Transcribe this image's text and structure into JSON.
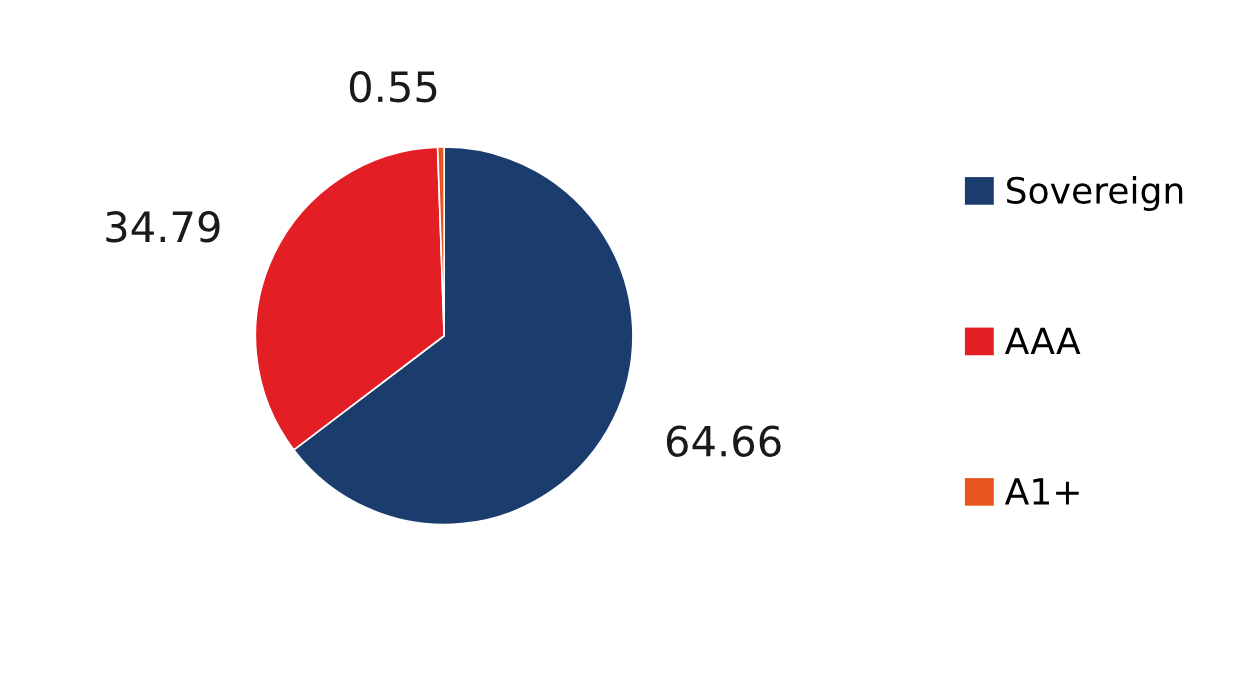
{
  "chart_data": {
    "type": "pie",
    "categories": [
      "Sovereign",
      "AAA",
      "A1+"
    ],
    "values": [
      64.66,
      34.79,
      0.55
    ],
    "colors": [
      "#1a3d6e",
      "#e31e24",
      "#e8551e"
    ],
    "data_labels": true,
    "legend": "right"
  }
}
